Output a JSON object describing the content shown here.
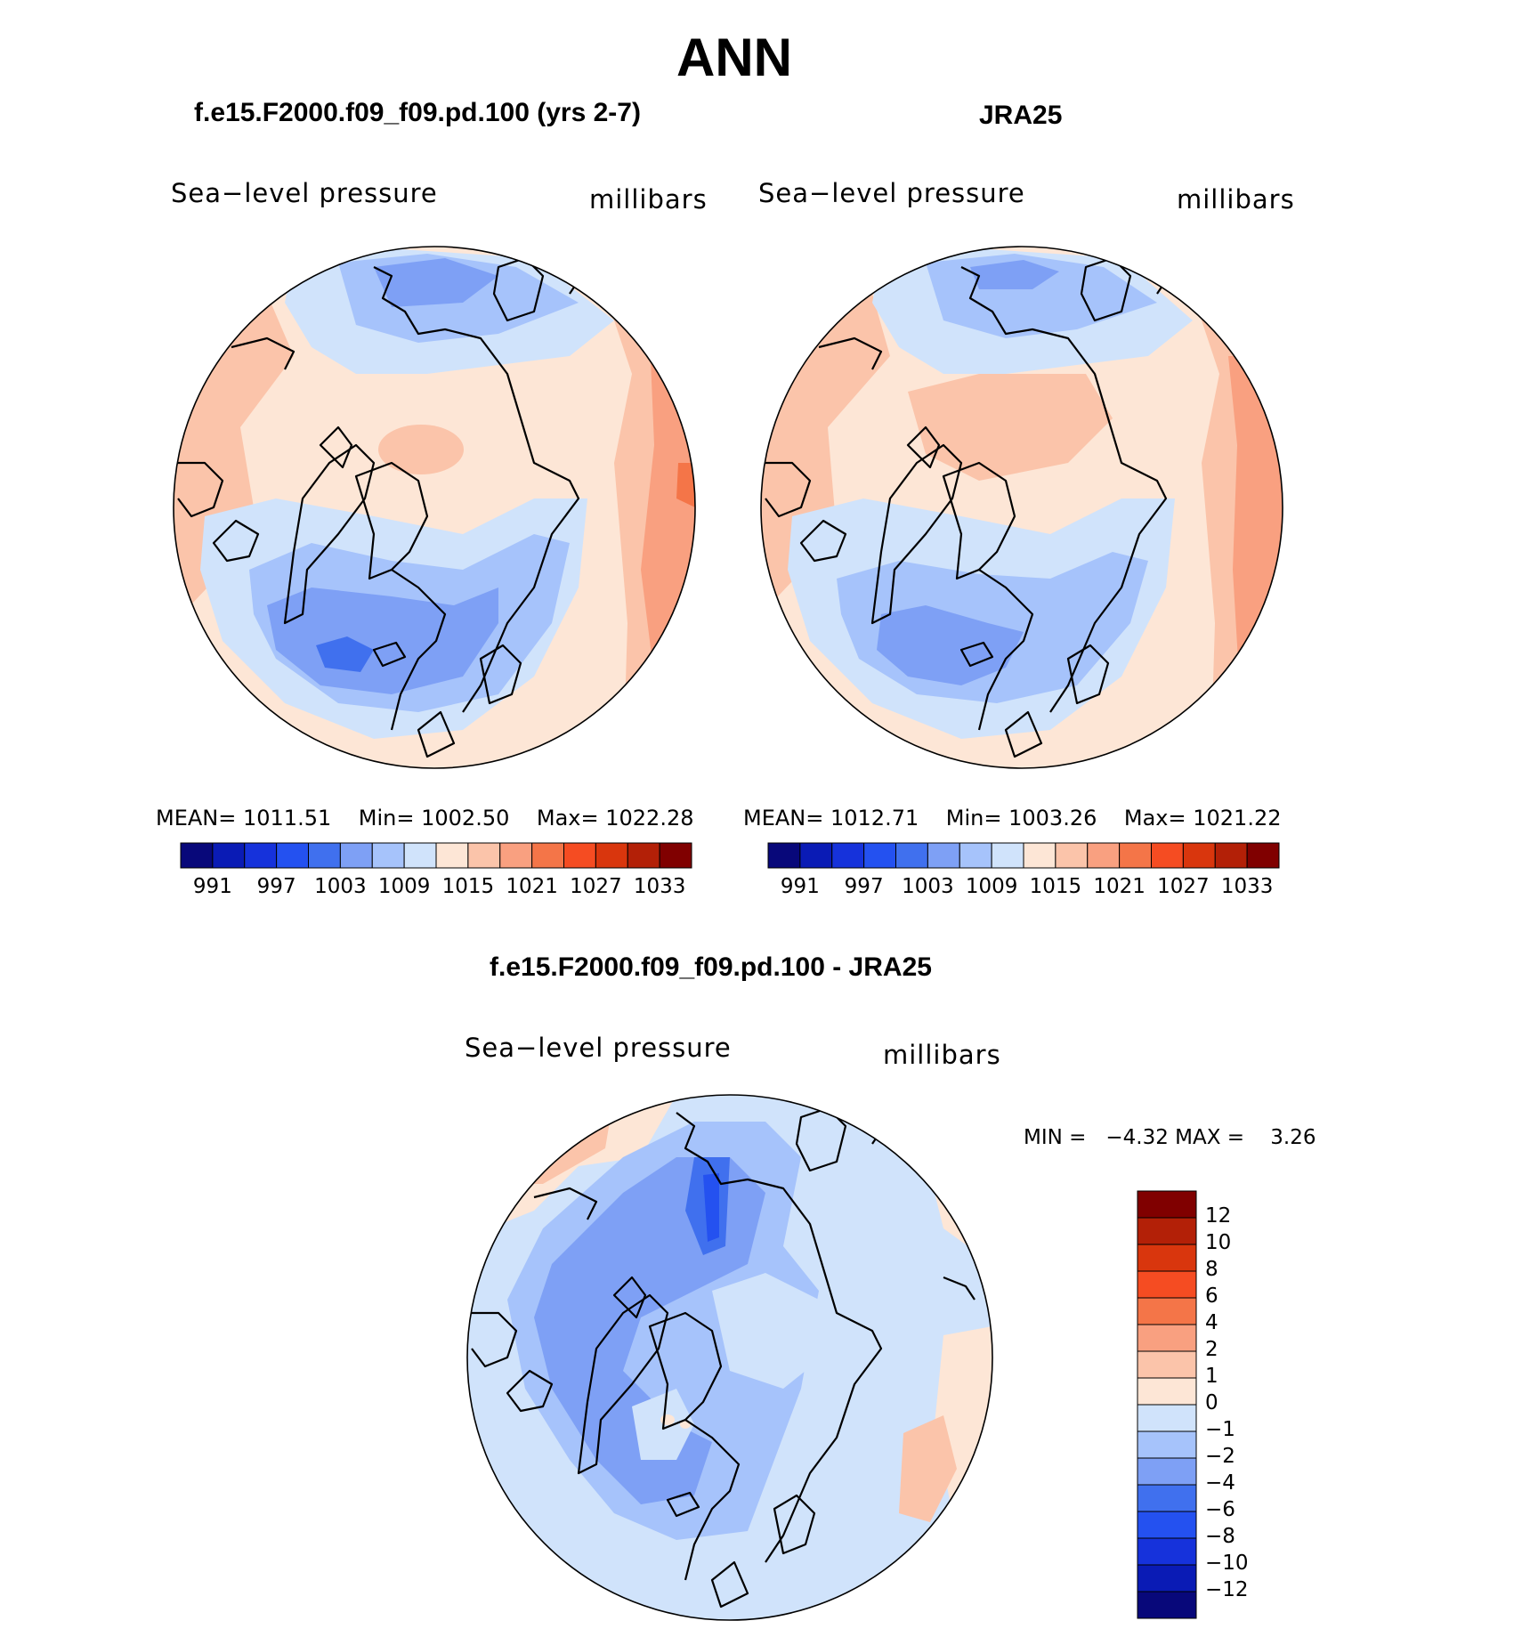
{
  "title": "ANN",
  "panels": [
    {
      "title": "f.e15.F2000.f09_f09.pd.100 (yrs 2-7)",
      "variable": "Sea−level pressure",
      "units": "millibars",
      "mean_label": "MEAN=",
      "mean": "1011.51",
      "min_label": "Min=",
      "min": "1002.50",
      "max_label": "Max=",
      "max": "1022.28"
    },
    {
      "title": "JRA25",
      "variable": "Sea−level pressure",
      "units": "millibars",
      "mean_label": "MEAN=",
      "mean": "1012.71",
      "min_label": "Min=",
      "min": "1003.26",
      "max_label": "Max=",
      "max": "1021.22"
    }
  ],
  "diff_panel": {
    "title": "f.e15.F2000.f09_f09.pd.100 - JRA25",
    "variable": "Sea−level pressure",
    "units": "millibars",
    "stats_line": "MIN =   −4.32 MAX =    3.26"
  },
  "chart_data": [
    {
      "type": "heatmap",
      "projection": "north-polar-stereographic",
      "title": "f.e15.F2000.f09_f09.pd.100 (yrs 2-7)",
      "variable": "Sea-level pressure",
      "units": "millibars",
      "mean": 1011.51,
      "min": 1002.5,
      "max": 1022.28,
      "colorbar": {
        "orientation": "horizontal",
        "tick_labels": [
          "991",
          "997",
          "1003",
          "1009",
          "1015",
          "1021",
          "1027",
          "1033"
        ],
        "levels": [
          988,
          991,
          994,
          997,
          1000,
          1003,
          1006,
          1009,
          1012,
          1015,
          1018,
          1021,
          1024,
          1027,
          1030,
          1033,
          1036
        ],
        "colors": [
          "#08087a",
          "#0a1bb5",
          "#1632db",
          "#2451f0",
          "#4070ee",
          "#7ea0f5",
          "#a6c3fb",
          "#d0e3fb",
          "#fde6d6",
          "#fbc4aa",
          "#f9a080",
          "#f47548",
          "#f54c22",
          "#d9360d",
          "#b32007",
          "#800000"
        ]
      }
    },
    {
      "type": "heatmap",
      "projection": "north-polar-stereographic",
      "title": "JRA25",
      "variable": "Sea-level pressure",
      "units": "millibars",
      "mean": 1012.71,
      "min": 1003.26,
      "max": 1021.22,
      "colorbar": {
        "orientation": "horizontal",
        "tick_labels": [
          "991",
          "997",
          "1003",
          "1009",
          "1015",
          "1021",
          "1027",
          "1033"
        ],
        "levels": [
          988,
          991,
          994,
          997,
          1000,
          1003,
          1006,
          1009,
          1012,
          1015,
          1018,
          1021,
          1024,
          1027,
          1030,
          1033,
          1036
        ],
        "colors": [
          "#08087a",
          "#0a1bb5",
          "#1632db",
          "#2451f0",
          "#4070ee",
          "#7ea0f5",
          "#a6c3fb",
          "#d0e3fb",
          "#fde6d6",
          "#fbc4aa",
          "#f9a080",
          "#f47548",
          "#f54c22",
          "#d9360d",
          "#b32007",
          "#800000"
        ]
      }
    },
    {
      "type": "heatmap",
      "projection": "north-polar-stereographic",
      "title": "f.e15.F2000.f09_f09.pd.100 - JRA25",
      "variable": "Sea-level pressure",
      "units": "millibars",
      "min": -4.32,
      "max": 3.26,
      "colorbar": {
        "orientation": "vertical",
        "tick_labels": [
          "12",
          "10",
          "8",
          "6",
          "4",
          "2",
          "1",
          "0",
          "−1",
          "−2",
          "−4",
          "−6",
          "−8",
          "−10",
          "−12"
        ],
        "colors_top_to_bottom": [
          "#800000",
          "#b32007",
          "#d9360d",
          "#f54c22",
          "#f47548",
          "#f9a080",
          "#fbc4aa",
          "#fde6d6",
          "#d0e3fb",
          "#a6c3fb",
          "#7ea0f5",
          "#4070ee",
          "#2451f0",
          "#1632db",
          "#0a1bb5",
          "#08087a"
        ]
      }
    }
  ]
}
